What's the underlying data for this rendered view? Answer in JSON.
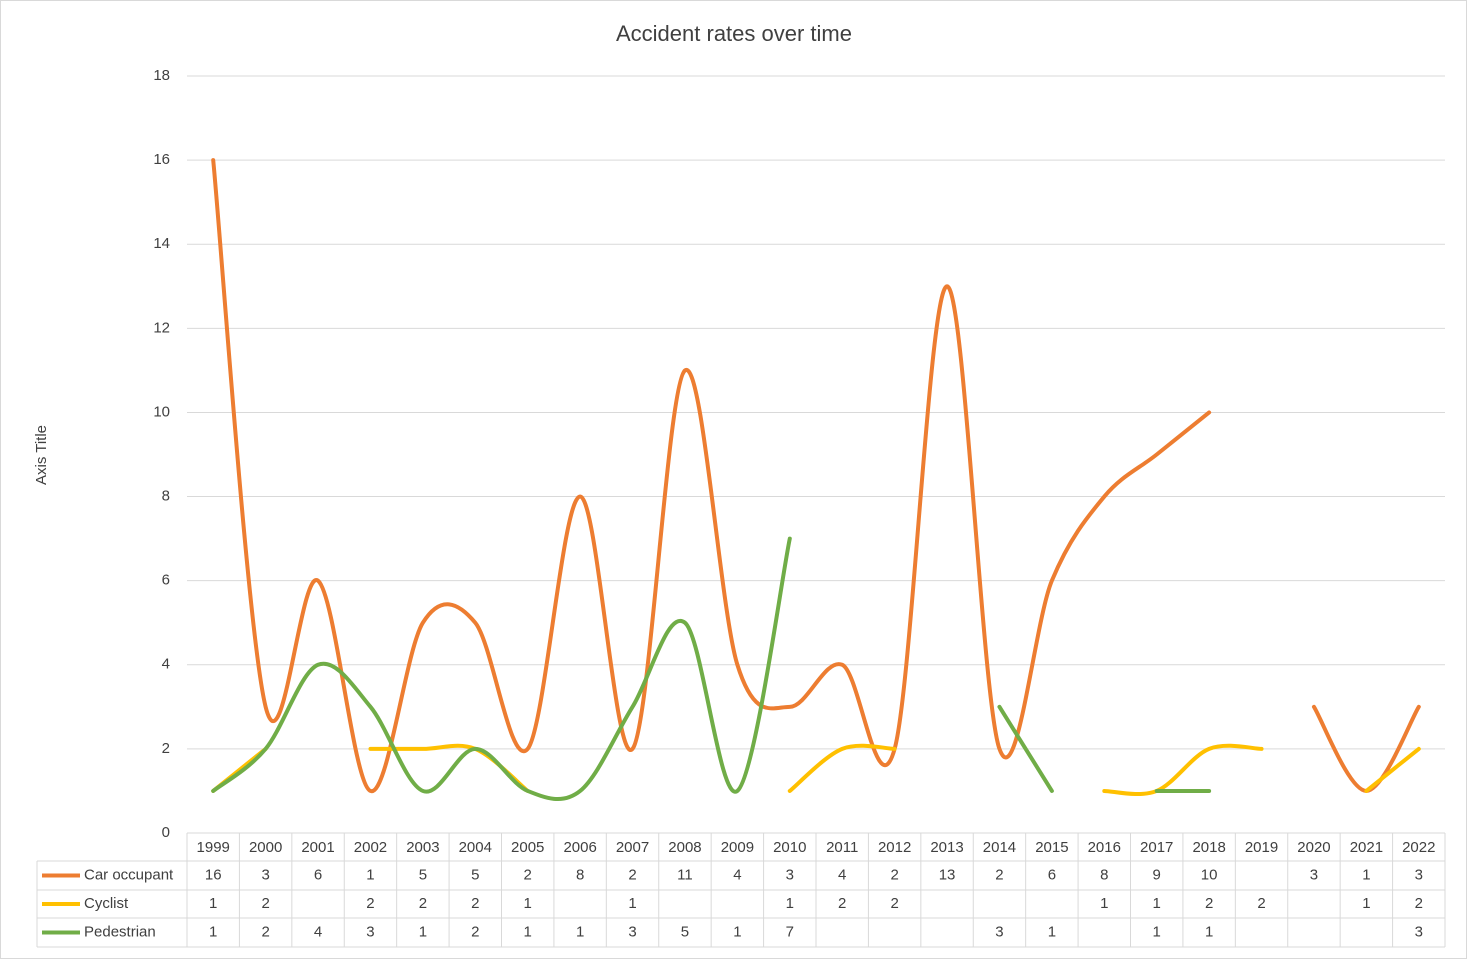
{
  "chart_data": {
    "type": "line",
    "title": "Accident rates over time",
    "y_label": "Axis Title",
    "categories": [
      "1999",
      "2000",
      "2001",
      "2002",
      "2003",
      "2004",
      "2005",
      "2006",
      "2007",
      "2008",
      "2009",
      "2010",
      "2011",
      "2012",
      "2013",
      "2014",
      "2015",
      "2016",
      "2017",
      "2018",
      "2019",
      "2020",
      "2021",
      "2022"
    ],
    "series": [
      {
        "name": "Car occupant",
        "color": "#ED7D31",
        "values": [
          16,
          3,
          6,
          1,
          5,
          5,
          2,
          8,
          2,
          11,
          4,
          3,
          4,
          2,
          13,
          2,
          6,
          8,
          9,
          10,
          null,
          3,
          1,
          3
        ]
      },
      {
        "name": "Cyclist",
        "color": "#FFC000",
        "values": [
          1,
          2,
          null,
          2,
          2,
          2,
          1,
          null,
          1,
          null,
          null,
          1,
          2,
          2,
          null,
          null,
          null,
          1,
          1,
          2,
          2,
          null,
          1,
          2
        ]
      },
      {
        "name": "Pedestrian",
        "color": "#70AD47",
        "values": [
          1,
          2,
          4,
          3,
          1,
          2,
          1,
          1,
          3,
          5,
          1,
          7,
          null,
          null,
          null,
          3,
          1,
          null,
          1,
          1,
          null,
          null,
          null,
          3
        ]
      }
    ],
    "ylim": [
      0,
      18
    ],
    "yticks": [
      0,
      2,
      4,
      6,
      8,
      10,
      12,
      14,
      16,
      18
    ],
    "grid": true,
    "smooth": true,
    "data_table": true
  }
}
